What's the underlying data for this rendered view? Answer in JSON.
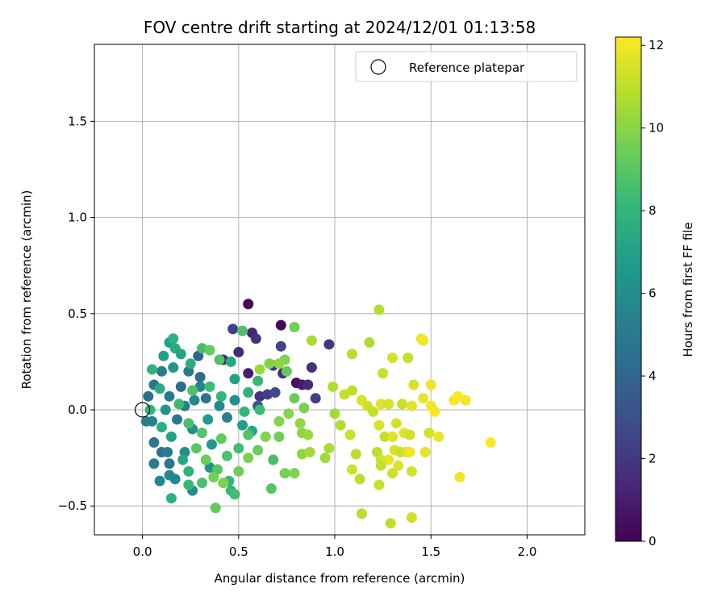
{
  "chart_data": {
    "type": "scatter",
    "title": "FOV centre drift starting at 2024/12/01 01:13:58",
    "xlabel": "Angular distance from reference (arcmin)",
    "ylabel": "Rotation from reference (arcmin)",
    "xlim": [
      -0.25,
      2.3
    ],
    "ylim": [
      -0.65,
      1.9
    ],
    "xticks": [
      "0.0",
      "0.5",
      "1.0",
      "1.5",
      "2.0"
    ],
    "yticks": [
      "−0.5",
      "0.0",
      "0.5",
      "1.0",
      "1.5"
    ],
    "grid": true,
    "legend": {
      "placement": "top-right",
      "entries": [
        "Reference platepar"
      ]
    },
    "reference_point": {
      "x": 0.0,
      "y": 0.0
    },
    "colorbar": {
      "label": "Hours from first FF file",
      "min": 0,
      "max": 12.2,
      "ticks": [
        "0",
        "2",
        "4",
        "6",
        "8",
        "10",
        "12"
      ],
      "colormap": "viridis"
    },
    "series": [
      {
        "points": [
          {
            "x": 0.55,
            "y": 0.55,
            "h": 0.3
          },
          {
            "x": 0.72,
            "y": 0.44,
            "h": 0.3
          },
          {
            "x": 0.57,
            "y": 0.4,
            "h": 1.2
          },
          {
            "x": 0.59,
            "y": 0.37,
            "h": 1.8
          },
          {
            "x": 0.47,
            "y": 0.42,
            "h": 2.4
          },
          {
            "x": 0.72,
            "y": 0.33,
            "h": 2.5
          },
          {
            "x": 0.97,
            "y": 0.34,
            "h": 2.0
          },
          {
            "x": 0.5,
            "y": 0.3,
            "h": 1.5
          },
          {
            "x": 0.8,
            "y": 0.14,
            "h": 0.6
          },
          {
            "x": 0.83,
            "y": 0.13,
            "h": 0.9
          },
          {
            "x": 0.86,
            "y": 0.13,
            "h": 1.4
          },
          {
            "x": 0.88,
            "y": 0.22,
            "h": 1.7
          },
          {
            "x": 0.68,
            "y": 0.23,
            "h": 1.9
          },
          {
            "x": 0.73,
            "y": 0.19,
            "h": 1.6
          },
          {
            "x": 0.55,
            "y": 0.19,
            "h": 1.0
          },
          {
            "x": 0.61,
            "y": 0.07,
            "h": 1.8
          },
          {
            "x": 0.65,
            "y": 0.08,
            "h": 2.3
          },
          {
            "x": 0.69,
            "y": 0.09,
            "h": 2.8
          },
          {
            "x": 0.9,
            "y": 0.06,
            "h": 2.2
          },
          {
            "x": 0.42,
            "y": 0.26,
            "h": 1.3
          },
          {
            "x": 0.6,
            "y": 0.02,
            "h": 3.3
          },
          {
            "x": 0.29,
            "y": 0.28,
            "h": 3.9
          },
          {
            "x": 0.1,
            "y": 0.2,
            "h": 5.0
          },
          {
            "x": 0.06,
            "y": 0.13,
            "h": 4.8
          },
          {
            "x": 0.03,
            "y": 0.07,
            "h": 4.5
          },
          {
            "x": 0.02,
            "y": -0.06,
            "h": 5.2
          },
          {
            "x": 0.05,
            "y": -0.06,
            "h": 5.4
          },
          {
            "x": 0.06,
            "y": -0.17,
            "h": 4.9
          },
          {
            "x": 0.06,
            "y": -0.28,
            "h": 5.0
          },
          {
            "x": 0.1,
            "y": -0.22,
            "h": 4.4
          },
          {
            "x": 0.13,
            "y": -0.22,
            "h": 5.1
          },
          {
            "x": 0.14,
            "y": -0.28,
            "h": 4.7
          },
          {
            "x": 0.09,
            "y": -0.37,
            "h": 5.5
          },
          {
            "x": 0.14,
            "y": -0.34,
            "h": 5.8
          },
          {
            "x": 0.17,
            "y": -0.36,
            "h": 5.6
          },
          {
            "x": 0.22,
            "y": -0.22,
            "h": 5.9
          },
          {
            "x": 0.26,
            "y": -0.42,
            "h": 6.0
          },
          {
            "x": 0.35,
            "y": -0.3,
            "h": 6.2
          },
          {
            "x": 0.36,
            "y": -0.18,
            "h": 6.5
          },
          {
            "x": 0.26,
            "y": -0.1,
            "h": 6.1
          },
          {
            "x": 0.44,
            "y": -0.04,
            "h": 5.3
          },
          {
            "x": 0.4,
            "y": 0.02,
            "h": 5.7
          },
          {
            "x": 0.33,
            "y": 0.06,
            "h": 4.6
          },
          {
            "x": 0.3,
            "y": 0.12,
            "h": 5.5
          },
          {
            "x": 0.2,
            "y": 0.12,
            "h": 4.2
          },
          {
            "x": 0.14,
            "y": 0.07,
            "h": 5.0
          },
          {
            "x": 0.12,
            "y": 0.0,
            "h": 6.3
          },
          {
            "x": 0.18,
            "y": -0.05,
            "h": 4.9
          },
          {
            "x": 0.22,
            "y": 0.02,
            "h": 5.2
          },
          {
            "x": 0.27,
            "y": 0.05,
            "h": 5.7
          },
          {
            "x": 0.34,
            "y": -0.05,
            "h": 6.6
          },
          {
            "x": 0.48,
            "y": 0.05,
            "h": 6.0
          },
          {
            "x": 0.52,
            "y": -0.08,
            "h": 6.8
          },
          {
            "x": 0.57,
            "y": -0.11,
            "h": 7.2
          },
          {
            "x": 0.3,
            "y": 0.17,
            "h": 4.3
          },
          {
            "x": 0.24,
            "y": 0.2,
            "h": 5.0
          },
          {
            "x": 0.16,
            "y": 0.22,
            "h": 6.4
          },
          {
            "x": 0.11,
            "y": 0.28,
            "h": 6.9
          },
          {
            "x": 0.14,
            "y": 0.35,
            "h": 6.7
          },
          {
            "x": 0.16,
            "y": 0.37,
            "h": 7.8
          },
          {
            "x": 0.17,
            "y": 0.32,
            "h": 7.4
          },
          {
            "x": 0.2,
            "y": 0.29,
            "h": 7.1
          },
          {
            "x": 0.25,
            "y": 0.24,
            "h": 7.6
          },
          {
            "x": 0.31,
            "y": 0.32,
            "h": 8.6
          },
          {
            "x": 0.35,
            "y": 0.31,
            "h": 9.3
          },
          {
            "x": 0.4,
            "y": 0.26,
            "h": 8.8
          },
          {
            "x": 0.46,
            "y": 0.25,
            "h": 7.3
          },
          {
            "x": 0.48,
            "y": 0.16,
            "h": 7.0
          },
          {
            "x": 0.52,
            "y": 0.41,
            "h": 8.7
          },
          {
            "x": 0.05,
            "y": 0.21,
            "h": 7.8
          },
          {
            "x": 0.09,
            "y": 0.11,
            "h": 7.5
          },
          {
            "x": 0.04,
            "y": 0.0,
            "h": 8.0
          },
          {
            "x": 0.1,
            "y": -0.09,
            "h": 7.6
          },
          {
            "x": 0.15,
            "y": -0.14,
            "h": 7.0
          },
          {
            "x": 0.21,
            "y": -0.26,
            "h": 7.3
          },
          {
            "x": 0.24,
            "y": -0.32,
            "h": 7.8
          },
          {
            "x": 0.24,
            "y": -0.39,
            "h": 8.2
          },
          {
            "x": 0.15,
            "y": -0.46,
            "h": 7.7
          },
          {
            "x": 0.31,
            "y": -0.38,
            "h": 8.6
          },
          {
            "x": 0.46,
            "y": -0.42,
            "h": 8.2
          },
          {
            "x": 0.48,
            "y": -0.44,
            "h": 8.5
          },
          {
            "x": 0.45,
            "y": -0.37,
            "h": 8.0
          },
          {
            "x": 0.39,
            "y": -0.31,
            "h": 8.9
          },
          {
            "x": 0.44,
            "y": -0.24,
            "h": 8.7
          },
          {
            "x": 0.5,
            "y": -0.2,
            "h": 8.4
          },
          {
            "x": 0.55,
            "y": -0.13,
            "h": 8.8
          },
          {
            "x": 0.53,
            "y": -0.01,
            "h": 8.1
          },
          {
            "x": 0.61,
            "y": 0.0,
            "h": 8.3
          },
          {
            "x": 0.55,
            "y": 0.09,
            "h": 7.9
          },
          {
            "x": 0.6,
            "y": 0.15,
            "h": 8.2
          },
          {
            "x": 0.41,
            "y": 0.07,
            "h": 8.1
          },
          {
            "x": 0.35,
            "y": 0.12,
            "h": 8.4
          },
          {
            "x": 0.26,
            "y": 0.1,
            "h": 8.7
          },
          {
            "x": 0.19,
            "y": 0.03,
            "h": 8.3
          },
          {
            "x": 0.24,
            "y": -0.07,
            "h": 8.6
          },
          {
            "x": 0.31,
            "y": -0.12,
            "h": 8.9
          },
          {
            "x": 0.41,
            "y": -0.15,
            "h": 9.2
          },
          {
            "x": 0.28,
            "y": -0.2,
            "h": 9.0
          },
          {
            "x": 0.33,
            "y": -0.26,
            "h": 9.4
          },
          {
            "x": 0.37,
            "y": -0.35,
            "h": 9.6
          },
          {
            "x": 0.38,
            "y": -0.51,
            "h": 9.2
          },
          {
            "x": 0.42,
            "y": -0.38,
            "h": 9.8
          },
          {
            "x": 0.5,
            "y": -0.32,
            "h": 9.5
          },
          {
            "x": 0.55,
            "y": -0.25,
            "h": 9.7
          },
          {
            "x": 0.6,
            "y": -0.21,
            "h": 9.4
          },
          {
            "x": 0.64,
            "y": -0.14,
            "h": 9.9
          },
          {
            "x": 0.67,
            "y": -0.41,
            "h": 9.0
          },
          {
            "x": 0.68,
            "y": -0.26,
            "h": 8.6
          },
          {
            "x": 0.74,
            "y": -0.33,
            "h": 9.6
          },
          {
            "x": 0.79,
            "y": -0.33,
            "h": 9.8
          },
          {
            "x": 0.71,
            "y": -0.14,
            "h": 9.5
          },
          {
            "x": 0.71,
            "y": -0.06,
            "h": 9.9
          },
          {
            "x": 0.76,
            "y": -0.02,
            "h": 10.0
          },
          {
            "x": 0.82,
            "y": -0.07,
            "h": 10.2
          },
          {
            "x": 0.84,
            "y": 0.01,
            "h": 9.7
          },
          {
            "x": 0.79,
            "y": 0.06,
            "h": 9.4
          },
          {
            "x": 0.75,
            "y": 0.2,
            "h": 9.2
          },
          {
            "x": 0.74,
            "y": 0.26,
            "h": 9.8
          },
          {
            "x": 0.79,
            "y": 0.43,
            "h": 9.5
          },
          {
            "x": 0.66,
            "y": 0.24,
            "h": 9.9
          },
          {
            "x": 0.71,
            "y": 0.24,
            "h": 10.1
          },
          {
            "x": 0.61,
            "y": 0.21,
            "h": 10.3
          },
          {
            "x": 0.83,
            "y": -0.12,
            "h": 10.0
          },
          {
            "x": 0.86,
            "y": -0.13,
            "h": 10.3
          },
          {
            "x": 0.83,
            "y": -0.23,
            "h": 10.1
          },
          {
            "x": 0.87,
            "y": -0.22,
            "h": 10.5
          },
          {
            "x": 0.95,
            "y": -0.25,
            "h": 10.4
          },
          {
            "x": 0.97,
            "y": -0.2,
            "h": 10.7
          },
          {
            "x": 0.88,
            "y": 0.36,
            "h": 10.6
          },
          {
            "x": 0.99,
            "y": 0.12,
            "h": 10.8
          },
          {
            "x": 1.0,
            "y": -0.02,
            "h": 10.5
          },
          {
            "x": 1.05,
            "y": 0.08,
            "h": 11.1
          },
          {
            "x": 1.09,
            "y": 0.29,
            "h": 10.9
          },
          {
            "x": 1.09,
            "y": 0.1,
            "h": 11.0
          },
          {
            "x": 1.03,
            "y": -0.08,
            "h": 10.8
          },
          {
            "x": 1.08,
            "y": -0.13,
            "h": 11.2
          },
          {
            "x": 1.11,
            "y": -0.23,
            "h": 10.9
          },
          {
            "x": 1.09,
            "y": -0.31,
            "h": 11.3
          },
          {
            "x": 1.13,
            "y": -0.36,
            "h": 11.0
          },
          {
            "x": 1.14,
            "y": -0.54,
            "h": 10.9
          },
          {
            "x": 1.18,
            "y": 0.35,
            "h": 10.7
          },
          {
            "x": 1.23,
            "y": 0.52,
            "h": 10.8
          },
          {
            "x": 1.25,
            "y": 0.19,
            "h": 11.2
          },
          {
            "x": 1.3,
            "y": 0.27,
            "h": 11.4
          },
          {
            "x": 1.38,
            "y": 0.27,
            "h": 11.1
          },
          {
            "x": 1.14,
            "y": 0.05,
            "h": 11.5
          },
          {
            "x": 1.17,
            "y": 0.02,
            "h": 11.3
          },
          {
            "x": 1.2,
            "y": -0.01,
            "h": 11.1
          },
          {
            "x": 1.24,
            "y": 0.03,
            "h": 11.6
          },
          {
            "x": 1.28,
            "y": 0.03,
            "h": 11.4
          },
          {
            "x": 1.35,
            "y": 0.03,
            "h": 11.2
          },
          {
            "x": 1.4,
            "y": 0.02,
            "h": 11.7
          },
          {
            "x": 1.41,
            "y": 0.13,
            "h": 11.5
          },
          {
            "x": 1.46,
            "y": 0.06,
            "h": 11.8
          },
          {
            "x": 1.5,
            "y": 0.13,
            "h": 11.9
          },
          {
            "x": 1.5,
            "y": 0.02,
            "h": 12.0
          },
          {
            "x": 1.52,
            "y": -0.01,
            "h": 12.1
          },
          {
            "x": 1.49,
            "y": -0.12,
            "h": 11.4
          },
          {
            "x": 1.54,
            "y": -0.14,
            "h": 11.8
          },
          {
            "x": 1.45,
            "y": 0.37,
            "h": 11.9
          },
          {
            "x": 1.46,
            "y": 0.36,
            "h": 12.0
          },
          {
            "x": 1.23,
            "y": -0.08,
            "h": 11.5
          },
          {
            "x": 1.26,
            "y": -0.14,
            "h": 11.2
          },
          {
            "x": 1.3,
            "y": -0.14,
            "h": 11.6
          },
          {
            "x": 1.32,
            "y": -0.07,
            "h": 11.4
          },
          {
            "x": 1.36,
            "y": -0.12,
            "h": 11.7
          },
          {
            "x": 1.39,
            "y": -0.13,
            "h": 11.3
          },
          {
            "x": 1.22,
            "y": -0.22,
            "h": 11.0
          },
          {
            "x": 1.24,
            "y": -0.26,
            "h": 11.4
          },
          {
            "x": 1.28,
            "y": -0.26,
            "h": 11.8
          },
          {
            "x": 1.31,
            "y": -0.21,
            "h": 11.5
          },
          {
            "x": 1.34,
            "y": -0.22,
            "h": 11.2
          },
          {
            "x": 1.37,
            "y": -0.22,
            "h": 11.6
          },
          {
            "x": 1.39,
            "y": -0.22,
            "h": 11.9
          },
          {
            "x": 1.47,
            "y": -0.22,
            "h": 11.7
          },
          {
            "x": 1.24,
            "y": -0.29,
            "h": 11.1
          },
          {
            "x": 1.3,
            "y": -0.33,
            "h": 11.3
          },
          {
            "x": 1.33,
            "y": -0.29,
            "h": 11.6
          },
          {
            "x": 1.4,
            "y": -0.32,
            "h": 11.4
          },
          {
            "x": 1.23,
            "y": -0.39,
            "h": 11.2
          },
          {
            "x": 1.29,
            "y": -0.59,
            "h": 11.0
          },
          {
            "x": 1.4,
            "y": -0.56,
            "h": 11.3
          },
          {
            "x": 1.62,
            "y": 0.05,
            "h": 12.1
          },
          {
            "x": 1.64,
            "y": 0.07,
            "h": 12.2
          },
          {
            "x": 1.68,
            "y": 0.05,
            "h": 12.1
          },
          {
            "x": 1.65,
            "y": -0.35,
            "h": 12.0
          },
          {
            "x": 1.81,
            "y": -0.17,
            "h": 12.2
          }
        ]
      }
    ]
  }
}
